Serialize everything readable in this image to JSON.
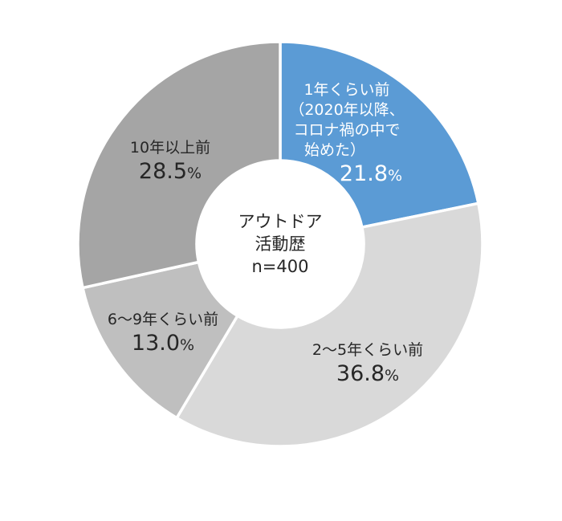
{
  "chart_data": {
    "type": "pie",
    "donut": true,
    "center_label": [
      "アウトドア",
      "活動歴",
      "n=400"
    ],
    "unit": "%",
    "slices": [
      {
        "label": [
          "1年くらい前",
          "（2020年以降、",
          "コロナ禍の中で",
          "始めた）"
        ],
        "value": 21.8,
        "value_text": "21.8",
        "color": "#5b9bd5",
        "text_color": "#ffffff"
      },
      {
        "label": [
          "2～5年くらい前"
        ],
        "value": 36.8,
        "value_text": "36.8",
        "color": "#d9d9d9",
        "text_color": "#262626"
      },
      {
        "label": [
          "6～9年くらい前"
        ],
        "value": 13.0,
        "value_text": "13.0",
        "color": "#bfbfbf",
        "text_color": "#262626"
      },
      {
        "label": [
          "10年以上前"
        ],
        "value": 28.5,
        "value_text": "28.5",
        "color": "#a5a5a5",
        "text_color": "#262626"
      }
    ],
    "legend": "none",
    "start_angle": "12 o'clock, clockwise"
  }
}
